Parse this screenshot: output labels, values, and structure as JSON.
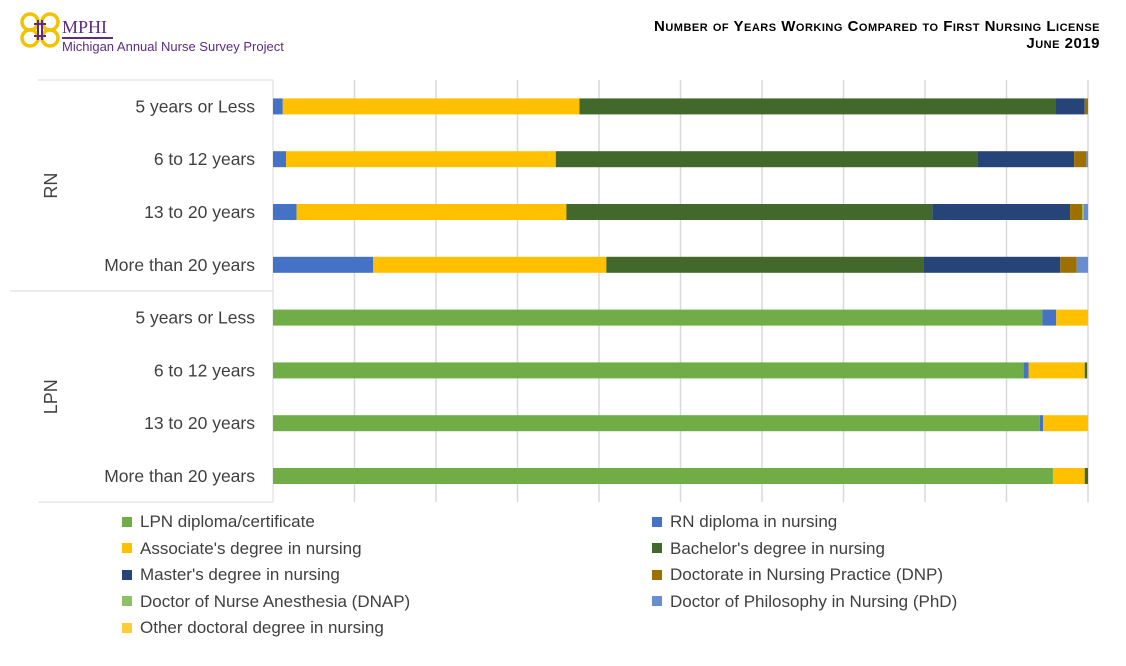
{
  "header": {
    "logo_text": "MPHI",
    "logo_subtitle": "Michigan Annual Nurse Survey Project",
    "title_line1": "Number of Years Working Compared to First Nursing License",
    "title_line2": "June 2019"
  },
  "chart_data": {
    "type": "bar",
    "orientation": "horizontal",
    "stacked": "percent",
    "xlim": [
      0,
      100
    ],
    "grid": true,
    "legend_position": "bottom",
    "groups": [
      {
        "name": "RN",
        "categories": [
          "5 years or Less",
          "6 to 12 years",
          "13 to 20 years",
          "More than 20 years"
        ]
      },
      {
        "name": "LPN",
        "categories": [
          "5 years or Less",
          "6 to 12 years",
          "13 to 20 years",
          "More than 20 years"
        ]
      }
    ],
    "series": [
      {
        "name": "LPN diploma/certificate",
        "color": "#70ad47",
        "values": [
          0,
          0,
          0,
          0,
          94.4,
          92.1,
          94.1,
          95.7
        ]
      },
      {
        "name": "RN diploma in nursing",
        "color": "#4472c4",
        "values": [
          1.2,
          1.6,
          2.9,
          12.3,
          1.7,
          0.6,
          0.4,
          0
        ]
      },
      {
        "name": "Associate's degree in nursing",
        "color": "#ffc000",
        "values": [
          36.4,
          33.1,
          33.1,
          28.6,
          3.9,
          6.9,
          5.5,
          3.9
        ]
      },
      {
        "name": "Bachelor's degree in nursing",
        "color": "#43682b",
        "values": [
          58.4,
          51.7,
          44.9,
          38.9,
          0,
          0.3,
          0,
          0.4
        ]
      },
      {
        "name": "Master's degree in nursing",
        "color": "#264478",
        "values": [
          3.6,
          11.9,
          16.9,
          16.8,
          0,
          0,
          0,
          0
        ]
      },
      {
        "name": "Doctorate in Nursing Practice (DNP)",
        "color": "#9e7000",
        "values": [
          0.4,
          1.5,
          1.5,
          2.0,
          0,
          0,
          0,
          0
        ]
      },
      {
        "name": "Doctor of Nurse Anesthesia (DNAP)",
        "color": "#8cc168",
        "values": [
          0,
          0,
          0.2,
          0,
          0,
          0,
          0,
          0
        ]
      },
      {
        "name": "Doctor of Philosophy in Nursing (PhD)",
        "color": "#698ed0",
        "values": [
          0,
          0.2,
          0.5,
          1.4,
          0,
          0,
          0,
          0
        ]
      },
      {
        "name": "Other doctoral degree in nursing",
        "color": "#ffcd33",
        "values": [
          0,
          0,
          0,
          0,
          0,
          0.1,
          0,
          0
        ]
      }
    ]
  }
}
